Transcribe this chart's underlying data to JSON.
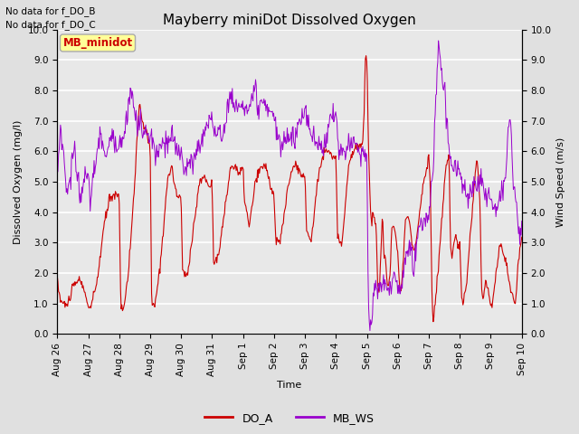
{
  "title": "Mayberry miniDot Dissolved Oxygen",
  "xlabel": "Time",
  "ylabel_left": "Dissolved Oxygen (mg/l)",
  "ylabel_right": "Wind Speed (m/s)",
  "annotation_line1": "No data for f_DO_B",
  "annotation_line2": "No data for f_DO_C",
  "legend_box_label": "MB_minidot",
  "legend_entries": [
    "DO_A",
    "MB_WS"
  ],
  "legend_colors": [
    "#cc0000",
    "#9900cc"
  ],
  "ylim": [
    0.0,
    10.0
  ],
  "yticks": [
    0.0,
    1.0,
    2.0,
    3.0,
    4.0,
    5.0,
    6.0,
    7.0,
    8.0,
    9.0,
    10.0
  ],
  "xticklabels": [
    "Aug 26",
    "Aug 27",
    "Aug 28",
    "Aug 29",
    "Aug 30",
    "Aug 31",
    "Sep 1",
    "Sep 2",
    "Sep 3",
    "Sep 4",
    "Sep 5",
    "Sep 6",
    "Sep 7",
    "Sep 8",
    "Sep 9",
    "Sep 10"
  ],
  "fig_bg_color": "#e0e0e0",
  "plot_bg_color": "#e8e8e8",
  "grid_color": "#ffffff",
  "legend_box_bg": "#ffff99",
  "legend_box_edge": "#aaaaaa",
  "do_color": "#cc0000",
  "ws_color": "#9900cc",
  "title_fontsize": 11,
  "axis_fontsize": 8,
  "tick_fontsize": 7.5,
  "annotation_fontsize": 7.5
}
